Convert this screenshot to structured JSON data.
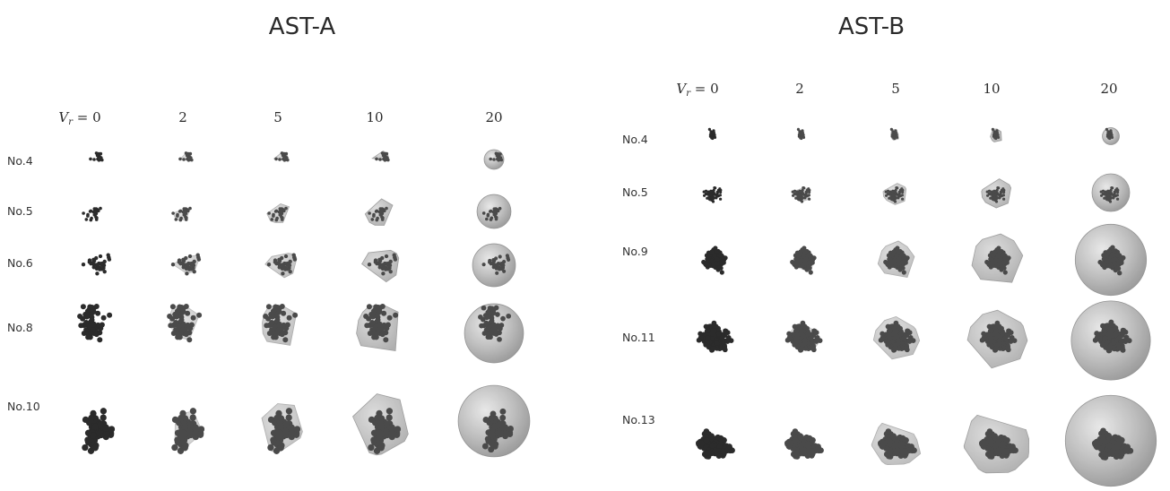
{
  "panels": [
    {
      "title": "AST-A",
      "column_headers": {
        "first_variable": "V",
        "first_subscript": "r",
        "first_rest": " = 0",
        "values": [
          "2",
          "5",
          "10",
          "20"
        ]
      },
      "rows": [
        "No.4",
        "No.5",
        "No.6",
        "No.8",
        "No.10"
      ]
    },
    {
      "title": "AST-B",
      "column_headers": {
        "first_variable": "V",
        "first_subscript": "r",
        "first_rest": " = 0",
        "values": [
          "2",
          "5",
          "10",
          "20"
        ]
      },
      "rows": [
        "No.4",
        "No.5",
        "No.9",
        "No.11",
        "No.13"
      ]
    }
  ],
  "visual": {
    "background": "#ffffff",
    "aggregate_color_dark": "#2b2b2b",
    "aggregate_color_mid": "#4a4a4a",
    "hull_color": "#a8a8a8",
    "hull_edge": "#8a8a8a",
    "icon_names": [
      "particle-aggregate",
      "convex-hull",
      "bounding-sphere"
    ]
  }
}
